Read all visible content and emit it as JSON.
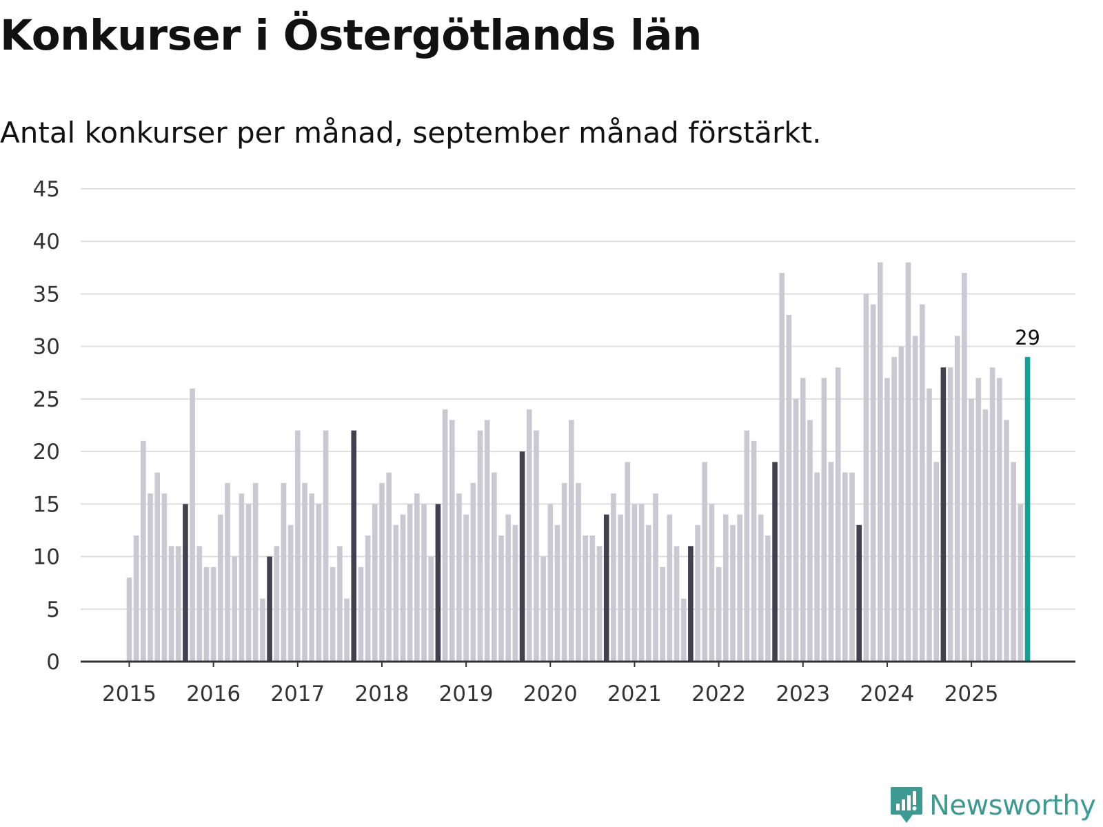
{
  "title": "Konkurser i Östergötlands län",
  "subtitle": "Antal konkurser per månad, september månad förstärkt.",
  "brand": {
    "name": "Newsworthy",
    "color": "#3d9a92",
    "icon": "newsworthy-logo-icon"
  },
  "colors": {
    "bar": "#c9c8d3",
    "september": "#42404f",
    "latest": "#11a197",
    "grid": "#dedede",
    "axis": "#333333"
  },
  "chart_data": {
    "type": "bar",
    "start_year": 2015,
    "start_month": 1,
    "highlight_month": 9,
    "y_ticks": [
      0,
      5,
      10,
      15,
      20,
      25,
      30,
      35,
      40,
      45
    ],
    "x_ticks": [
      "2015",
      "2016",
      "2017",
      "2018",
      "2019",
      "2020",
      "2021",
      "2022",
      "2023",
      "2024",
      "2025"
    ],
    "ylim": [
      0,
      45
    ],
    "values": [
      8,
      12,
      21,
      16,
      18,
      16,
      11,
      11,
      15,
      26,
      11,
      9,
      9,
      14,
      17,
      10,
      16,
      15,
      17,
      6,
      10,
      11,
      17,
      13,
      22,
      17,
      16,
      15,
      22,
      9,
      11,
      6,
      22,
      9,
      12,
      15,
      17,
      18,
      13,
      14,
      15,
      16,
      15,
      10,
      15,
      24,
      23,
      16,
      14,
      17,
      22,
      23,
      18,
      12,
      14,
      13,
      20,
      24,
      22,
      10,
      15,
      13,
      17,
      23,
      17,
      12,
      12,
      11,
      14,
      16,
      14,
      19,
      15,
      15,
      13,
      16,
      9,
      14,
      11,
      6,
      11,
      13,
      19,
      15,
      9,
      14,
      13,
      14,
      22,
      21,
      14,
      12,
      19,
      37,
      33,
      25,
      27,
      23,
      18,
      27,
      19,
      28,
      18,
      18,
      13,
      35,
      34,
      38,
      27,
      29,
      30,
      38,
      31,
      34,
      26,
      19,
      28,
      28,
      31,
      37,
      25,
      27,
      24,
      28,
      27,
      23,
      19,
      15,
      29
    ],
    "annotation": {
      "label": "29",
      "value": 29
    }
  }
}
